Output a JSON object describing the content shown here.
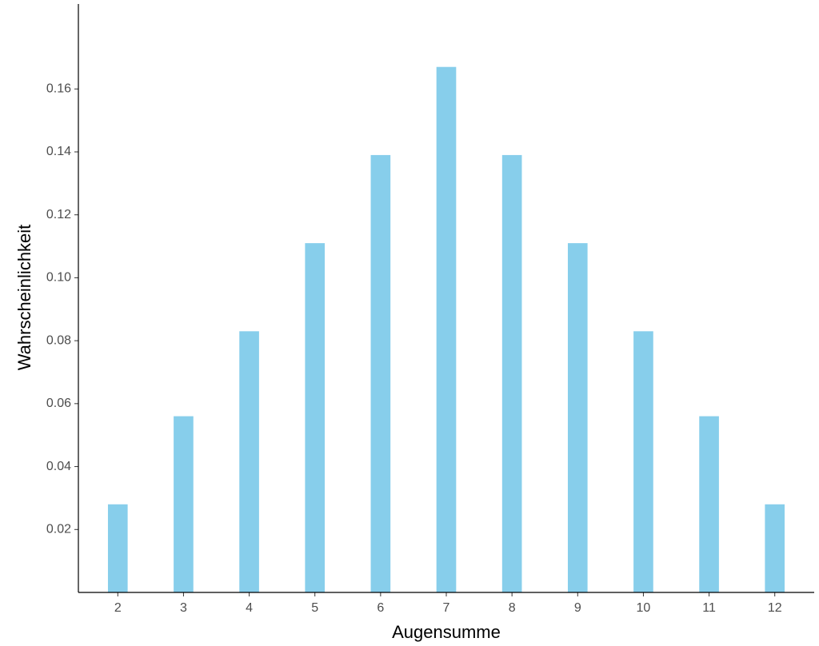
{
  "chart_data": {
    "type": "bar",
    "x_label": "Augensumme",
    "y_label": "Wahrscheinlichkeit",
    "x": [
      2,
      3,
      4,
      5,
      6,
      7,
      8,
      9,
      10,
      11,
      12
    ],
    "values": [
      0.028,
      0.056,
      0.083,
      0.111,
      0.139,
      0.167,
      0.139,
      0.111,
      0.083,
      0.056,
      0.028
    ],
    "color": "#87ceeb",
    "xlim": [
      1.4,
      12.6
    ],
    "xticks": [
      2,
      3,
      4,
      5,
      6,
      7,
      8,
      9,
      10,
      11,
      12
    ],
    "ylim": [
      0,
      0.187
    ],
    "yticks": [
      0.02,
      0.04,
      0.06,
      0.08,
      {
        "value": 0.1,
        "label": "0.10"
      },
      0.12,
      0.14,
      0.16
    ],
    "grid": false
  }
}
